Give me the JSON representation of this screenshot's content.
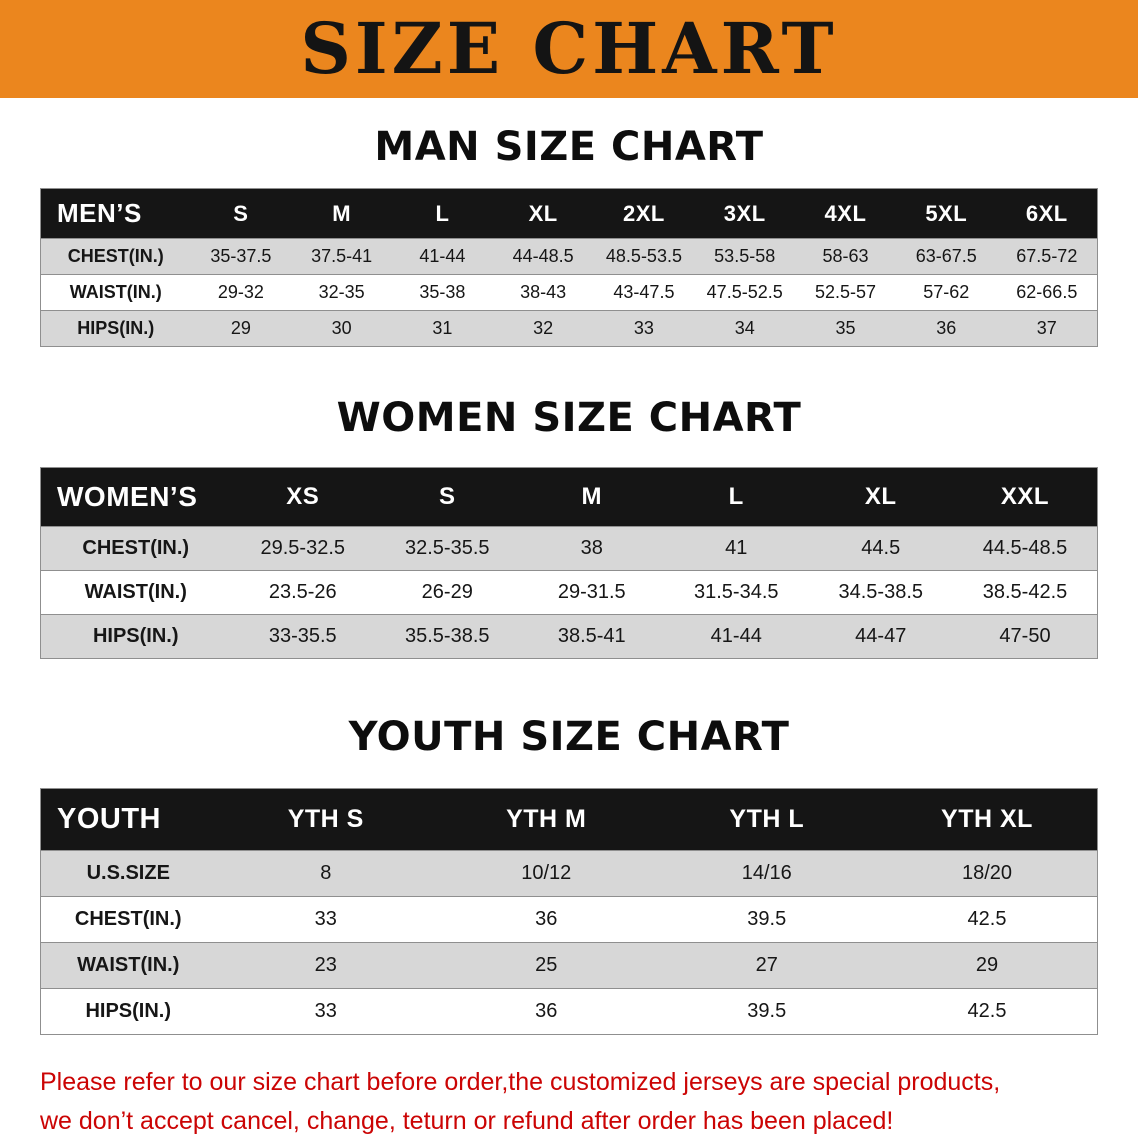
{
  "banner": {
    "title": "SIZE CHART",
    "bg_color": "#EB861E",
    "text_color": "#141414"
  },
  "chart_data": [
    {
      "type": "table",
      "title": "MAN SIZE CHART",
      "columns": [
        "MEN’S",
        "S",
        "M",
        "L",
        "XL",
        "2XL",
        "3XL",
        "4XL",
        "5XL",
        "6XL"
      ],
      "rows": [
        {
          "label": "CHEST(IN.)",
          "values": [
            "35-37.5",
            "37.5-41",
            "41-44",
            "44-48.5",
            "48.5-53.5",
            "53.5-58",
            "58-63",
            "63-67.5",
            "67.5-72"
          ]
        },
        {
          "label": "WAIST(IN.)",
          "values": [
            "29-32",
            "32-35",
            "35-38",
            "38-43",
            "43-47.5",
            "47.5-52.5",
            "52.5-57",
            "57-62",
            "62-66.5"
          ]
        },
        {
          "label": "HIPS(IN.)",
          "values": [
            "29",
            "30",
            "31",
            "32",
            "33",
            "34",
            "35",
            "36",
            "37"
          ]
        }
      ]
    },
    {
      "type": "table",
      "title": "WOMEN SIZE CHART",
      "columns": [
        "WOMEN’S",
        "XS",
        "S",
        "M",
        "L",
        "XL",
        "XXL"
      ],
      "rows": [
        {
          "label": "CHEST(IN.)",
          "values": [
            "29.5-32.5",
            "32.5-35.5",
            "38",
            "41",
            "44.5",
            "44.5-48.5"
          ]
        },
        {
          "label": "WAIST(IN.)",
          "values": [
            "23.5-26",
            "26-29",
            "29-31.5",
            "31.5-34.5",
            "34.5-38.5",
            "38.5-42.5"
          ]
        },
        {
          "label": "HIPS(IN.)",
          "values": [
            "33-35.5",
            "35.5-38.5",
            "38.5-41",
            "41-44",
            "44-47",
            "47-50"
          ]
        }
      ]
    },
    {
      "type": "table",
      "title": "YOUTH SIZE CHART",
      "columns": [
        "YOUTH",
        "YTH S",
        "YTH M",
        "YTH L",
        "YTH XL"
      ],
      "rows": [
        {
          "label": "U.S.SIZE",
          "values": [
            "8",
            "10/12",
            "14/16",
            "18/20"
          ]
        },
        {
          "label": "CHEST(IN.)",
          "values": [
            "33",
            "36",
            "39.5",
            "42.5"
          ]
        },
        {
          "label": "WAIST(IN.)",
          "values": [
            "23",
            "25",
            "27",
            "29"
          ]
        },
        {
          "label": "HIPS(IN.)",
          "values": [
            "33",
            "36",
            "39.5",
            "42.5"
          ]
        }
      ]
    }
  ],
  "disclaimer": {
    "line1": "Please refer to our size chart before order,the customized jerseys are special products,",
    "line2": "we don’t accept cancel, change, teturn or refund after order has been placed!",
    "text_color": "#CB0404"
  },
  "colors": {
    "table_header_bg": "#151515",
    "table_header_text": "#FFFFFF",
    "row_shade": "#D7D7D7",
    "row_plain": "#FFFFFF"
  }
}
